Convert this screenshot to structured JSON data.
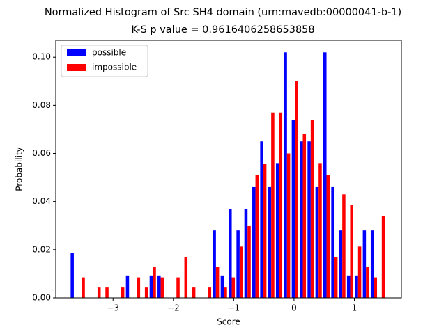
{
  "chart_data": {
    "type": "histogram",
    "title": "Normalized Histogram of Src SH4 domain (urn:mavedb:00000041-b-1)",
    "subtitle": "K-S p value = 0.9616406258653858",
    "x_label": "Score",
    "y_label": "Probability",
    "bins": [
      -3.716,
      -3.585,
      -3.454,
      -3.323,
      -3.192,
      -3.061,
      -2.931,
      -2.8,
      -2.669,
      -2.538,
      -2.407,
      -2.276,
      -2.145,
      -2.014,
      -1.883,
      -1.753,
      -1.622,
      -1.491,
      -1.36,
      -1.229,
      -1.098,
      -0.967,
      -0.836,
      -0.705,
      -0.574,
      -0.444,
      -0.313,
      -0.182,
      -0.051,
      0.08,
      0.211,
      0.342,
      0.473,
      0.604,
      0.735,
      0.865,
      0.996,
      1.127,
      1.258,
      1.389,
      1.52
    ],
    "series": [
      {
        "name": "possible",
        "color": "#0000ff",
        "values": [
          0.0185,
          0,
          0,
          0,
          0,
          0,
          0,
          0.0093,
          0,
          0,
          0.0093,
          0.0093,
          0,
          0,
          0,
          0,
          0,
          0,
          0.028,
          0.0093,
          0.037,
          0.028,
          0.037,
          0.046,
          0.065,
          0.046,
          0.056,
          0.102,
          0.074,
          0.065,
          0.065,
          0.046,
          0.102,
          0.046,
          0.028,
          0.0093,
          0.0093,
          0.028,
          0.028,
          0
        ]
      },
      {
        "name": "impossible",
        "color": "#ff0000",
        "values": [
          0,
          0.0085,
          0,
          0.0043,
          0.0043,
          0,
          0.0043,
          0,
          0.0085,
          0.0043,
          0.0128,
          0.0085,
          0,
          0.0085,
          0.017,
          0.0043,
          0,
          0.0043,
          0.0128,
          0.0043,
          0.0085,
          0.0213,
          0.0298,
          0.051,
          0.0556,
          0.077,
          0.077,
          0.06,
          0.09,
          0.068,
          0.074,
          0.056,
          0.051,
          0.017,
          0.043,
          0.0385,
          0.0213,
          0.0128,
          0.0085,
          0.034
        ]
      }
    ],
    "xlim": [
      -3.95,
      1.78
    ],
    "xticks": [
      {
        "value": -3,
        "label": "−3"
      },
      {
        "value": -2,
        "label": "−2"
      },
      {
        "value": -1,
        "label": "−1"
      },
      0,
      1
    ],
    "ylim": [
      0,
      0.107
    ],
    "yticks": [
      {
        "value": 0,
        "label": "0.00"
      },
      {
        "value": 0.02,
        "label": "0.02"
      },
      {
        "value": 0.04,
        "label": "0.04"
      },
      {
        "value": 0.06,
        "label": "0.06"
      },
      {
        "value": 0.08,
        "label": "0.08"
      },
      {
        "value": 0.1,
        "label": "0.10"
      }
    ],
    "legend": "upper left"
  }
}
